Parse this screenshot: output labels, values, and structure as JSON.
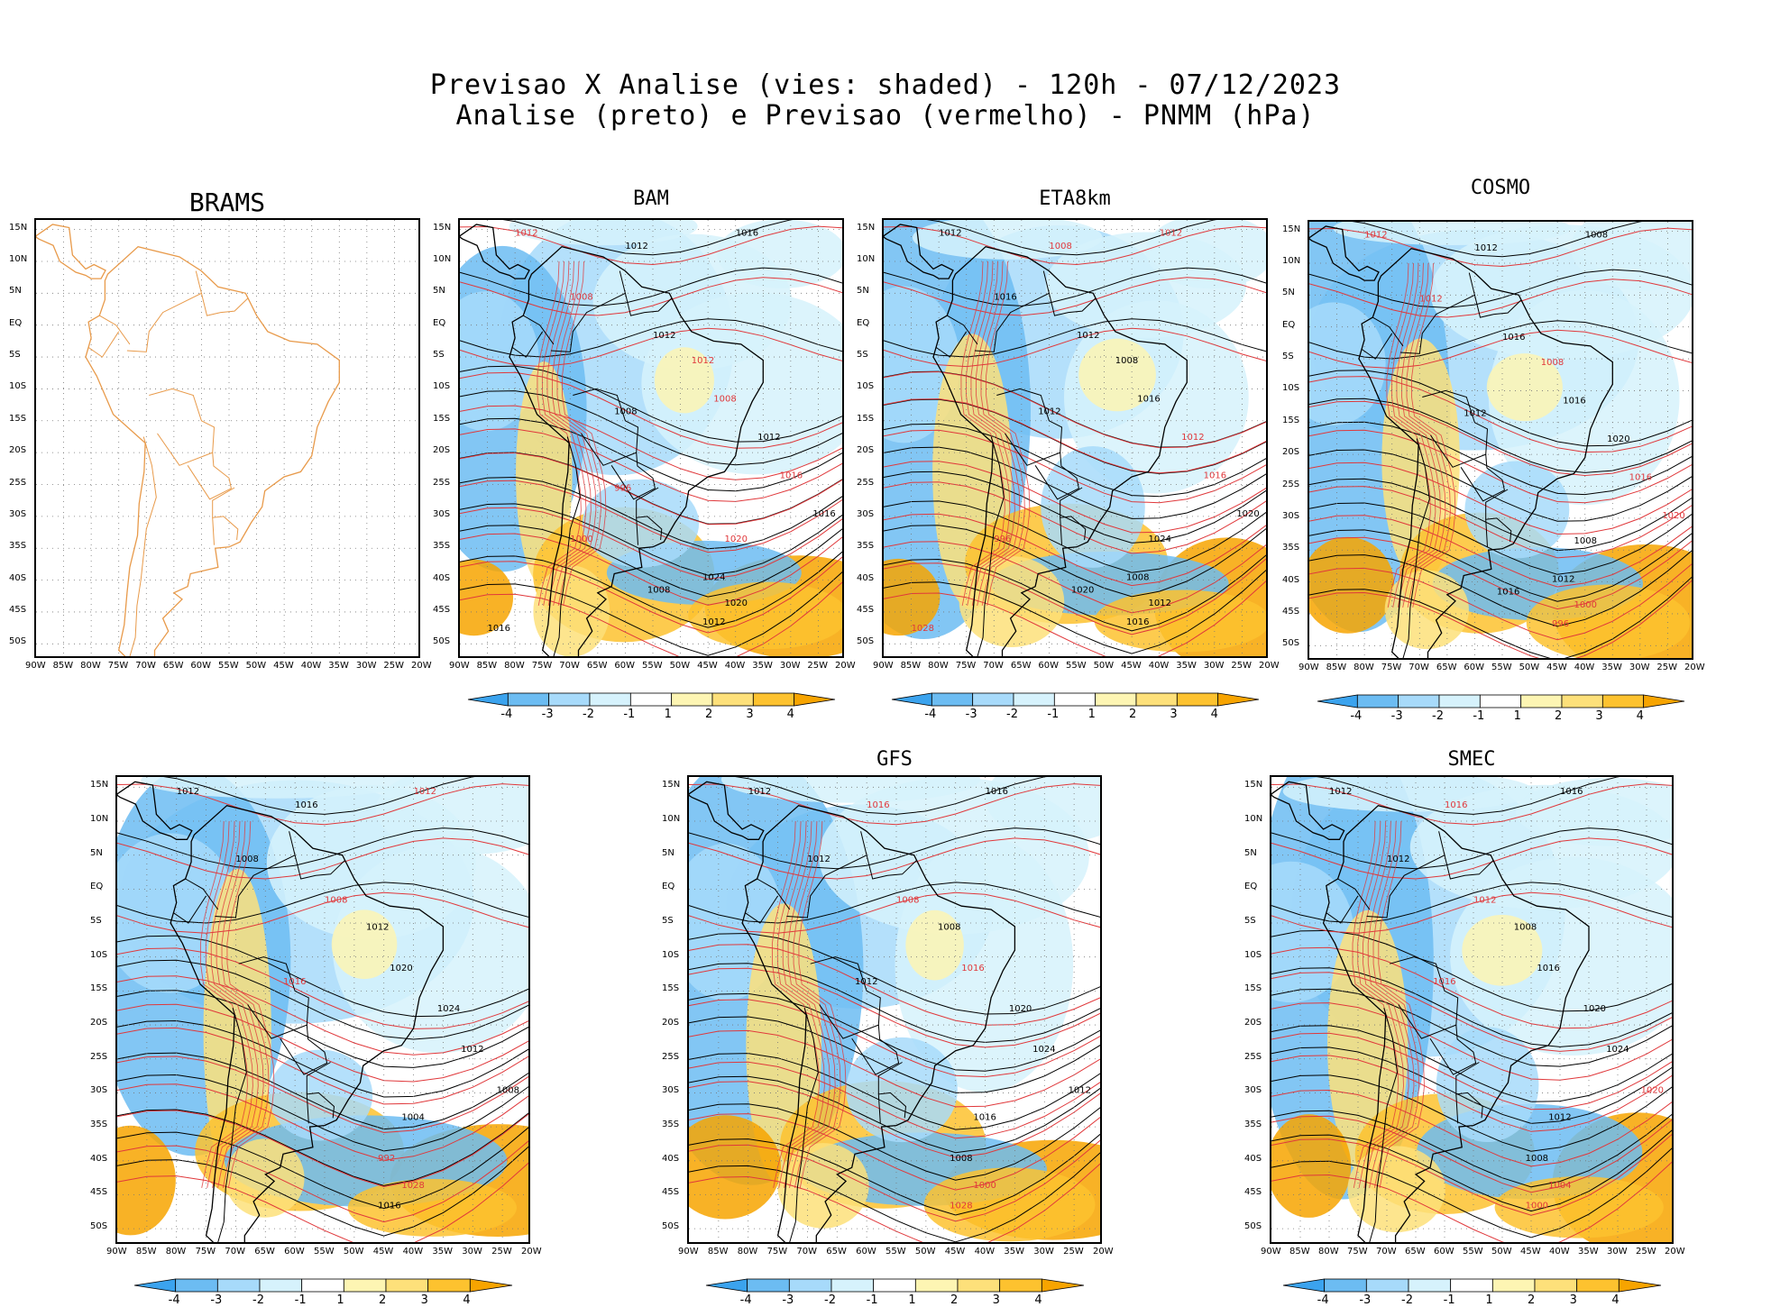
{
  "header": {
    "line1": "Previsao X Analise (vies: shaded) - 120h - 07/12/2023",
    "line2": "Analise (preto) e Previsao (vermelho) - PNMM (hPa)"
  },
  "axes": {
    "lat_labels": [
      "15N",
      "10N",
      "5N",
      "EQ",
      "5S",
      "10S",
      "15S",
      "20S",
      "25S",
      "30S",
      "35S",
      "40S",
      "45S",
      "50S"
    ],
    "lon_labels": [
      "90W",
      "85W",
      "80W",
      "75W",
      "70W",
      "65W",
      "60W",
      "55W",
      "50W",
      "45W",
      "40W",
      "35W",
      "30W",
      "25W",
      "20W"
    ]
  },
  "colorbar": {
    "labels": [
      "-4",
      "-3",
      "-2",
      "-1",
      "1",
      "2",
      "3",
      "4"
    ],
    "colors": [
      "#3ba3ee",
      "#6cbcf2",
      "#a7dafa",
      "#d6f2fc",
      "#ffffff",
      "#fdf5b3",
      "#fde07a",
      "#fdc22f",
      "#f7a400"
    ]
  },
  "colors": {
    "analysis_contour": "#000000",
    "forecast_contour": "#e0383b",
    "coastline": "#e89a4a"
  },
  "panels": [
    {
      "id": "brams",
      "title": "BRAMS",
      "has_data": false,
      "has_colorbar": false,
      "contour_labels": []
    },
    {
      "id": "bam",
      "title": "BAM",
      "has_data": true,
      "has_colorbar": true,
      "contour_labels": [
        {
          "t": "1012",
          "c": "red"
        },
        {
          "t": "1012",
          "c": "black"
        },
        {
          "t": "1016",
          "c": "black"
        },
        {
          "t": "1008",
          "c": "red"
        },
        {
          "t": "1012",
          "c": "black"
        },
        {
          "t": "1012",
          "c": "red"
        },
        {
          "t": "1008",
          "c": "black"
        },
        {
          "t": "1008",
          "c": "red"
        },
        {
          "t": "1012",
          "c": "black"
        },
        {
          "t": "1016",
          "c": "red"
        },
        {
          "t": "1016",
          "c": "black"
        },
        {
          "t": "1020",
          "c": "red"
        },
        {
          "t": "1024",
          "c": "black"
        },
        {
          "t": "1020",
          "c": "black"
        },
        {
          "t": "1012",
          "c": "black"
        },
        {
          "t": "1008",
          "c": "black"
        },
        {
          "t": "1016",
          "c": "black"
        },
        {
          "t": "1000",
          "c": "red"
        },
        {
          "t": "996",
          "c": "red"
        }
      ]
    },
    {
      "id": "eta8km",
      "title": "ETA8km",
      "has_data": true,
      "has_colorbar": true,
      "contour_labels": [
        {
          "t": "1012",
          "c": "black"
        },
        {
          "t": "1008",
          "c": "red"
        },
        {
          "t": "1012",
          "c": "red"
        },
        {
          "t": "1016",
          "c": "black"
        },
        {
          "t": "1012",
          "c": "black"
        },
        {
          "t": "1008",
          "c": "black"
        },
        {
          "t": "1012",
          "c": "black"
        },
        {
          "t": "1016",
          "c": "black"
        },
        {
          "t": "1012",
          "c": "red"
        },
        {
          "t": "1016",
          "c": "red"
        },
        {
          "t": "1020",
          "c": "black"
        },
        {
          "t": "1024",
          "c": "black"
        },
        {
          "t": "1008",
          "c": "black"
        },
        {
          "t": "1012",
          "c": "black"
        },
        {
          "t": "1016",
          "c": "black"
        },
        {
          "t": "1020",
          "c": "black"
        },
        {
          "t": "1028",
          "c": "red"
        },
        {
          "t": "996",
          "c": "red"
        }
      ]
    },
    {
      "id": "cosmo",
      "title": "COSMO",
      "has_data": true,
      "has_colorbar": true,
      "contour_labels": [
        {
          "t": "1012",
          "c": "red"
        },
        {
          "t": "1012",
          "c": "black"
        },
        {
          "t": "1008",
          "c": "black"
        },
        {
          "t": "1012",
          "c": "red"
        },
        {
          "t": "1016",
          "c": "black"
        },
        {
          "t": "1008",
          "c": "red"
        },
        {
          "t": "1012",
          "c": "black"
        },
        {
          "t": "1016",
          "c": "black"
        },
        {
          "t": "1020",
          "c": "black"
        },
        {
          "t": "1016",
          "c": "red"
        },
        {
          "t": "1020",
          "c": "red"
        },
        {
          "t": "1008",
          "c": "black"
        },
        {
          "t": "1012",
          "c": "black"
        },
        {
          "t": "1000",
          "c": "red"
        },
        {
          "t": "996",
          "c": "red"
        },
        {
          "t": "1016",
          "c": "black"
        }
      ]
    },
    {
      "id": "bottom_left",
      "title": "",
      "has_data": true,
      "has_colorbar": true,
      "contour_labels": [
        {
          "t": "1012",
          "c": "black"
        },
        {
          "t": "1016",
          "c": "black"
        },
        {
          "t": "1012",
          "c": "red"
        },
        {
          "t": "1008",
          "c": "black"
        },
        {
          "t": "1008",
          "c": "red"
        },
        {
          "t": "1012",
          "c": "black"
        },
        {
          "t": "1016",
          "c": "red"
        },
        {
          "t": "1020",
          "c": "black"
        },
        {
          "t": "1024",
          "c": "black"
        },
        {
          "t": "1012",
          "c": "black"
        },
        {
          "t": "1008",
          "c": "black"
        },
        {
          "t": "1004",
          "c": "black"
        },
        {
          "t": "992",
          "c": "red"
        },
        {
          "t": "1028",
          "c": "red"
        },
        {
          "t": "1016",
          "c": "black"
        }
      ]
    },
    {
      "id": "gfs",
      "title": "GFS",
      "has_data": true,
      "has_colorbar": true,
      "contour_labels": [
        {
          "t": "1012",
          "c": "black"
        },
        {
          "t": "1016",
          "c": "red"
        },
        {
          "t": "1016",
          "c": "black"
        },
        {
          "t": "1012",
          "c": "black"
        },
        {
          "t": "1008",
          "c": "red"
        },
        {
          "t": "1008",
          "c": "black"
        },
        {
          "t": "1012",
          "c": "black"
        },
        {
          "t": "1016",
          "c": "red"
        },
        {
          "t": "1020",
          "c": "black"
        },
        {
          "t": "1024",
          "c": "black"
        },
        {
          "t": "1012",
          "c": "black"
        },
        {
          "t": "1016",
          "c": "black"
        },
        {
          "t": "1008",
          "c": "black"
        },
        {
          "t": "1000",
          "c": "red"
        },
        {
          "t": "1028",
          "c": "red"
        }
      ]
    },
    {
      "id": "smec",
      "title": "SMEC",
      "has_data": true,
      "has_colorbar": true,
      "contour_labels": [
        {
          "t": "1012",
          "c": "black"
        },
        {
          "t": "1016",
          "c": "red"
        },
        {
          "t": "1016",
          "c": "black"
        },
        {
          "t": "1012",
          "c": "black"
        },
        {
          "t": "1012",
          "c": "red"
        },
        {
          "t": "1008",
          "c": "black"
        },
        {
          "t": "1016",
          "c": "red"
        },
        {
          "t": "1016",
          "c": "black"
        },
        {
          "t": "1020",
          "c": "black"
        },
        {
          "t": "1024",
          "c": "black"
        },
        {
          "t": "1020",
          "c": "red"
        },
        {
          "t": "1012",
          "c": "black"
        },
        {
          "t": "1008",
          "c": "black"
        },
        {
          "t": "1004",
          "c": "red"
        },
        {
          "t": "1000",
          "c": "red"
        }
      ]
    }
  ]
}
